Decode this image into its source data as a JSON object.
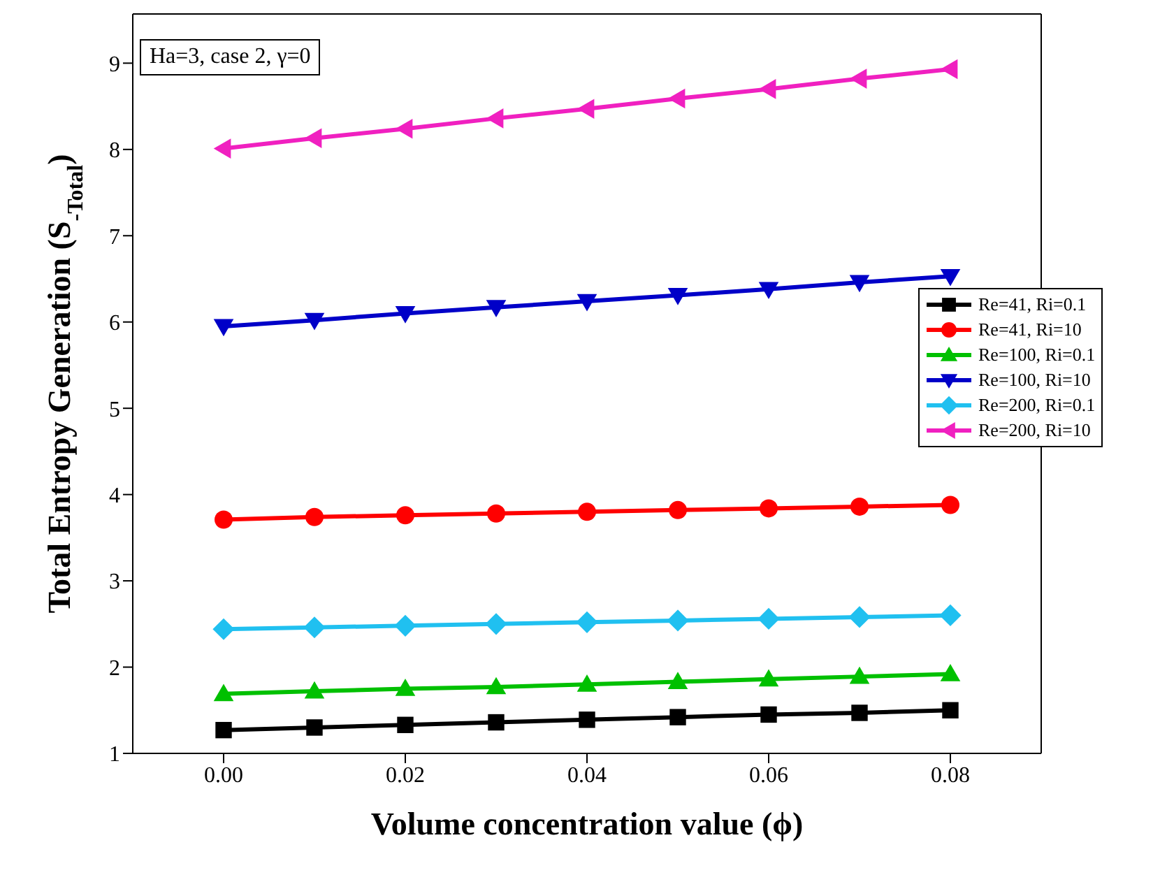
{
  "chart_data": {
    "type": "line",
    "xlabel": "Volume concentration value (ϕ)",
    "ylabel": "Total Entropy Generation (S$_{-Total}$)",
    "annotations": [
      "Ha=3, case 2, γ=0"
    ],
    "x": [
      0,
      0.01,
      0.02,
      0.03,
      0.04,
      0.05,
      0.06,
      0.07,
      0.08
    ],
    "xlim": [
      -0.01,
      0.09
    ],
    "xticks": [
      {
        "value": 0,
        "label": "0.00"
      },
      {
        "value": 0.02,
        "label": "0.02"
      },
      {
        "value": 0.04,
        "label": "0.04"
      },
      {
        "value": 0.06,
        "label": "0.06"
      },
      {
        "value": 0.08,
        "label": "0.08"
      }
    ],
    "ylim": [
      1,
      9.57
    ],
    "yticks": [
      1,
      2,
      3,
      4,
      5,
      6,
      7,
      8,
      9
    ],
    "grid": false,
    "legend": "right",
    "line_style": "solid",
    "series": [
      {
        "name": "Re=41, Ri=0.1",
        "color": "#000000",
        "marker": "square",
        "values": [
          1.27,
          1.3,
          1.33,
          1.36,
          1.39,
          1.42,
          1.45,
          1.47,
          1.5
        ]
      },
      {
        "name": "Re=41, Ri=10",
        "color": "#ff0000",
        "marker": "circle",
        "values": [
          3.71,
          3.74,
          3.76,
          3.78,
          3.8,
          3.82,
          3.84,
          3.86,
          3.88
        ]
      },
      {
        "name": "Re=100, Ri=0.1",
        "color": "#00c000",
        "marker": "triangle",
        "values": [
          1.69,
          1.72,
          1.75,
          1.77,
          1.8,
          1.83,
          1.86,
          1.89,
          1.92
        ]
      },
      {
        "name": "Re=100, Ri=10",
        "color": "#0000c8",
        "marker": "triangle-down",
        "values": [
          5.95,
          6.02,
          6.1,
          6.17,
          6.24,
          6.31,
          6.38,
          6.46,
          6.53
        ]
      },
      {
        "name": "Re=200, Ri=0.1",
        "color": "#20c0f0",
        "marker": "diamond",
        "values": [
          2.44,
          2.46,
          2.48,
          2.5,
          2.52,
          2.54,
          2.56,
          2.58,
          2.6
        ]
      },
      {
        "name": "Re=200, Ri=10",
        "color": "#f020c0",
        "marker": "triangle-left",
        "values": [
          8.01,
          8.13,
          8.24,
          8.36,
          8.47,
          8.59,
          8.7,
          8.82,
          8.93
        ]
      }
    ]
  }
}
